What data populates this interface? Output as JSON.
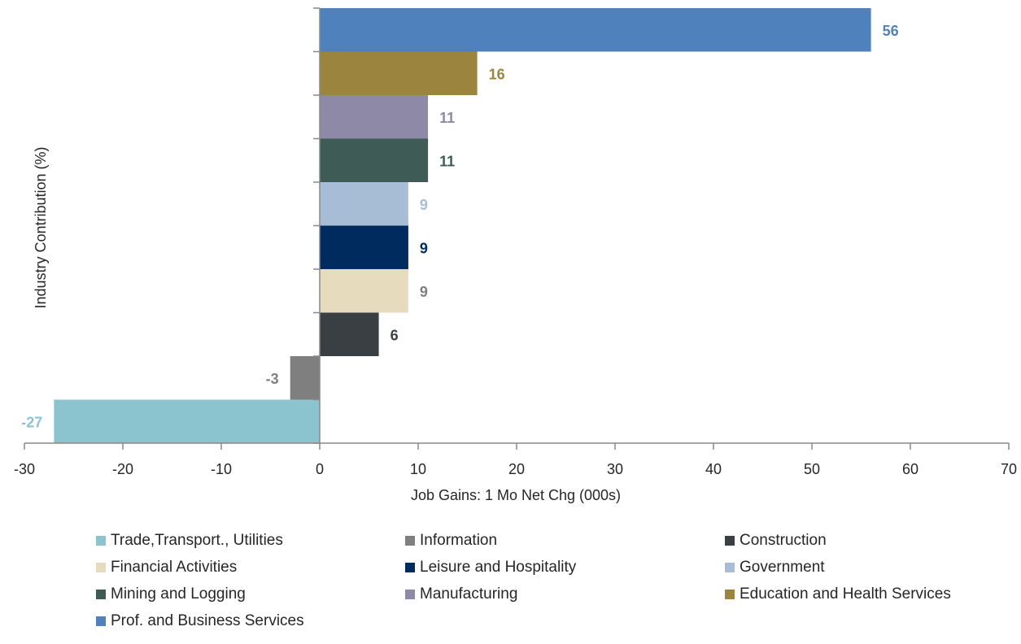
{
  "chart_data": {
    "type": "bar",
    "orientation": "horizontal",
    "title": "",
    "xlabel": "Job Gains: 1 Mo Net Chg (000s)",
    "ylabel": "Industry Contribution  (%)",
    "xlim": [
      -30,
      70
    ],
    "xticks": [
      -30,
      -20,
      -10,
      0,
      10,
      20,
      30,
      40,
      50,
      60,
      70
    ],
    "legend_position": "bottom",
    "grid": false,
    "bars": [
      {
        "category": "Trade,Transport., Utilities",
        "value": -27,
        "label": "-27",
        "color": "#8BC4CE"
      },
      {
        "category": "Information",
        "value": -3,
        "label": "-3",
        "color": "#7F7F7F"
      },
      {
        "category": "Construction",
        "value": 6,
        "label": "6",
        "color": "#3A3F44"
      },
      {
        "category": "Financial Activities",
        "value": 9,
        "label": "9",
        "color": "#E6DBBC"
      },
      {
        "category": "Leisure and Hospitality",
        "value": 9,
        "label": "9",
        "color": "#002B5E"
      },
      {
        "category": "Government",
        "value": 9,
        "label": "9",
        "color": "#A7BDD6"
      },
      {
        "category": "Mining and Logging",
        "value": 11,
        "label": "11",
        "color": "#3E5B55"
      },
      {
        "category": "Manufacturing",
        "value": 11,
        "label": "11",
        "color": "#8E89A6"
      },
      {
        "category": "Education and Health Services",
        "value": 16,
        "label": "16",
        "color": "#9A843E"
      },
      {
        "category": "Prof. and Business Services",
        "value": 56,
        "label": "56",
        "color": "#4F81BD"
      }
    ]
  }
}
